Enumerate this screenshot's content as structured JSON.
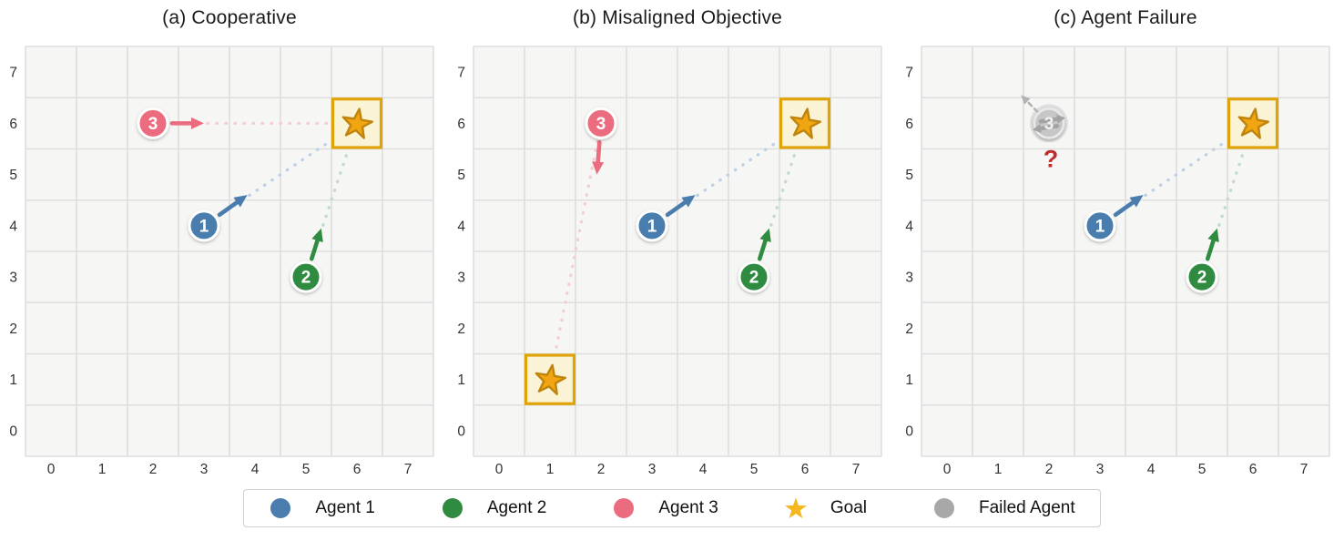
{
  "figure": {
    "background": "#ffffff",
    "description": "Three-panel grid-world comparison of multi-agent scenarios"
  },
  "palette": {
    "agent1": "#4a7dad",
    "agent2": "#2f8b40",
    "agent3": "#ea6c7e",
    "agent1_path": "#bdd0e7",
    "agent2_path": "#c2dbc8",
    "agent3_path": "#f6ccd3",
    "goal_fill": "#fbf3d5",
    "goal_border": "#dfa407",
    "star_fill": "#f1a512",
    "star_stroke": "#bf840c",
    "legend_star": "#f5b71e",
    "failed_fill": "#c7c7c7",
    "failed_halo": "#bdbdbd",
    "failed_arrow": "#a3a3a3",
    "failed_dashed": "#b2b2b2",
    "failed_legend": "#a8a8a8",
    "question": "#bf2e2e",
    "grid_bg": "#f6f6f5",
    "grid_line": "#dedede",
    "tick_color": "#333333",
    "title_color": "#1a1a1a"
  },
  "axes": {
    "x_ticks": [
      "0",
      "1",
      "2",
      "3",
      "4",
      "5",
      "6",
      "7"
    ],
    "y_ticks": [
      "0",
      "1",
      "2",
      "3",
      "4",
      "5",
      "6",
      "7"
    ],
    "xlim": [
      -0.5,
      7.5
    ],
    "ylim": [
      -0.5,
      7.5
    ]
  },
  "chart_data": [
    {
      "type": "scatter",
      "title": "(a) Cooperative",
      "grid": true,
      "goals": [
        {
          "x": 6,
          "y": 6
        }
      ],
      "agents": [
        {
          "label": "1",
          "x": 3,
          "y": 4,
          "color_key": "agent1",
          "arrow_dx": 0.85,
          "arrow_dy": 0.6,
          "path_to": {
            "x": 6,
            "y": 6
          }
        },
        {
          "label": "2",
          "x": 5,
          "y": 3,
          "color_key": "agent2",
          "arrow_dx": 0.3,
          "arrow_dy": 0.95,
          "path_to": {
            "x": 6,
            "y": 6
          }
        },
        {
          "label": "3",
          "x": 2,
          "y": 6,
          "color_key": "agent3",
          "arrow_dx": 1.0,
          "arrow_dy": 0,
          "path_to": {
            "x": 6,
            "y": 6
          }
        }
      ]
    },
    {
      "type": "scatter",
      "title": "(b) Misaligned Objective",
      "grid": true,
      "goals": [
        {
          "x": 6,
          "y": 6
        },
        {
          "x": 1,
          "y": 1
        }
      ],
      "agents": [
        {
          "label": "1",
          "x": 3,
          "y": 4,
          "color_key": "agent1",
          "arrow_dx": 0.85,
          "arrow_dy": 0.6,
          "path_to": {
            "x": 6,
            "y": 6
          }
        },
        {
          "label": "2",
          "x": 5,
          "y": 3,
          "color_key": "agent2",
          "arrow_dx": 0.3,
          "arrow_dy": 0.95,
          "path_to": {
            "x": 6,
            "y": 6
          }
        },
        {
          "label": "3",
          "x": 2,
          "y": 6,
          "color_key": "agent3",
          "arrow_dx": -0.08,
          "arrow_dy": -1.0,
          "path_to": {
            "x": 1,
            "y": 1
          }
        }
      ]
    },
    {
      "type": "scatter",
      "title": "(c) Agent Failure",
      "grid": true,
      "goals": [
        {
          "x": 6,
          "y": 6
        }
      ],
      "agents": [
        {
          "label": "1",
          "x": 3,
          "y": 4,
          "color_key": "agent1",
          "arrow_dx": 0.85,
          "arrow_dy": 0.6,
          "path_to": {
            "x": 6,
            "y": 6
          }
        },
        {
          "label": "2",
          "x": 5,
          "y": 3,
          "color_key": "agent2",
          "arrow_dx": 0.3,
          "arrow_dy": 0.95,
          "path_to": {
            "x": 6,
            "y": 6
          }
        },
        {
          "label": "3",
          "x": 2,
          "y": 6,
          "failed": true,
          "question_mark": "?",
          "dashed_arrow_dx": -0.55,
          "dashed_arrow_dy": 0.55
        }
      ]
    }
  ],
  "legend": {
    "items": [
      {
        "label": "Agent 1",
        "marker": "circle",
        "color_key": "agent1"
      },
      {
        "label": "Agent 2",
        "marker": "circle",
        "color_key": "agent2"
      },
      {
        "label": "Agent 3",
        "marker": "circle",
        "color_key": "agent3"
      },
      {
        "label": "Goal",
        "marker": "star",
        "color_key": "legend_star"
      },
      {
        "label": "Failed Agent",
        "marker": "circle",
        "color_key": "failed_legend"
      }
    ]
  }
}
